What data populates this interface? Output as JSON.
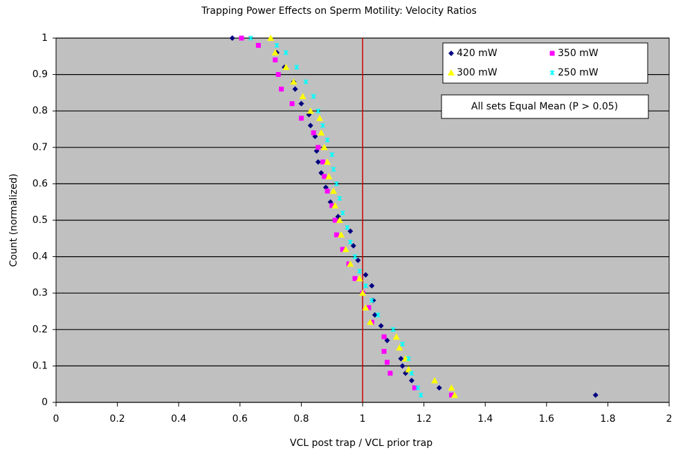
{
  "chart_data": {
    "type": "scatter",
    "title": "Trapping Power Effects on Sperm Motility: Velocity Ratios",
    "x_label": "VCL post trap / VCL prior trap",
    "y_label": "Count (normalized)",
    "annotation": "All sets Equal Mean (P > 0.05)",
    "xlim": [
      0,
      2
    ],
    "ylim": [
      0,
      1
    ],
    "xticks": [
      0,
      0.2,
      0.4,
      0.6,
      0.8,
      1,
      1.2,
      1.4,
      1.6,
      1.8,
      2
    ],
    "yticks": [
      0,
      0.1,
      0.2,
      0.3,
      0.4,
      0.5,
      0.6,
      0.7,
      0.8,
      0.9,
      1
    ],
    "grid": true,
    "legend": "top-right",
    "vline": {
      "x": 1,
      "color": "#cc0000"
    },
    "series": [
      {
        "name": "420 mW",
        "color": "#000080",
        "marker": "diamond",
        "x": [
          0.575,
          0.72,
          0.745,
          0.775,
          0.78,
          0.8,
          0.825,
          0.83,
          0.845,
          0.85,
          0.855,
          0.865,
          0.88,
          0.895,
          0.92,
          0.96,
          0.97,
          0.985,
          1.01,
          1.03,
          1.035,
          1.04,
          1.06,
          1.08,
          1.125,
          1.13,
          1.14,
          1.16,
          1.25,
          1.76
        ],
        "values": [
          1.0,
          0.96,
          0.92,
          0.88,
          0.86,
          0.82,
          0.79,
          0.76,
          0.73,
          0.69,
          0.66,
          0.63,
          0.59,
          0.55,
          0.51,
          0.47,
          0.43,
          0.39,
          0.35,
          0.32,
          0.28,
          0.24,
          0.21,
          0.17,
          0.12,
          0.1,
          0.08,
          0.06,
          0.04,
          0.02
        ]
      },
      {
        "name": "350 mW",
        "color": "#ff00ff",
        "marker": "square",
        "x": [
          0.605,
          0.66,
          0.715,
          0.725,
          0.735,
          0.77,
          0.8,
          0.84,
          0.855,
          0.87,
          0.875,
          0.885,
          0.9,
          0.91,
          0.915,
          0.935,
          0.955,
          0.975,
          1.0,
          1.02,
          1.03,
          1.07,
          1.07,
          1.08,
          1.09,
          1.17,
          1.29
        ],
        "values": [
          1.0,
          0.98,
          0.94,
          0.9,
          0.86,
          0.82,
          0.78,
          0.74,
          0.7,
          0.66,
          0.62,
          0.58,
          0.54,
          0.5,
          0.46,
          0.42,
          0.38,
          0.34,
          0.3,
          0.26,
          0.22,
          0.18,
          0.14,
          0.11,
          0.08,
          0.04,
          0.02
        ]
      },
      {
        "name": "300 mW",
        "color": "#ffff00",
        "marker": "triangle",
        "x": [
          0.7,
          0.715,
          0.75,
          0.775,
          0.805,
          0.83,
          0.86,
          0.865,
          0.875,
          0.885,
          0.89,
          0.905,
          0.91,
          0.925,
          0.93,
          0.945,
          0.96,
          0.99,
          1.0,
          1.01,
          1.025,
          1.11,
          1.12,
          1.14,
          1.15,
          1.235,
          1.29,
          1.3
        ],
        "values": [
          1.0,
          0.96,
          0.92,
          0.88,
          0.84,
          0.8,
          0.78,
          0.74,
          0.7,
          0.66,
          0.62,
          0.58,
          0.54,
          0.5,
          0.46,
          0.42,
          0.38,
          0.34,
          0.3,
          0.26,
          0.22,
          0.18,
          0.15,
          0.12,
          0.09,
          0.06,
          0.04,
          0.02
        ]
      },
      {
        "name": "250 mW",
        "color": "#00ffff",
        "marker": "star",
        "x": [
          0.635,
          0.72,
          0.75,
          0.785,
          0.815,
          0.84,
          0.855,
          0.87,
          0.885,
          0.9,
          0.905,
          0.915,
          0.925,
          0.935,
          0.95,
          0.96,
          0.975,
          0.99,
          1.01,
          1.03,
          1.05,
          1.1,
          1.13,
          1.15,
          1.16,
          1.18,
          1.19
        ],
        "values": [
          1.0,
          0.98,
          0.96,
          0.92,
          0.88,
          0.84,
          0.8,
          0.76,
          0.72,
          0.68,
          0.64,
          0.6,
          0.56,
          0.52,
          0.48,
          0.44,
          0.4,
          0.36,
          0.32,
          0.28,
          0.24,
          0.2,
          0.16,
          0.12,
          0.08,
          0.04,
          0.02
        ]
      }
    ]
  }
}
